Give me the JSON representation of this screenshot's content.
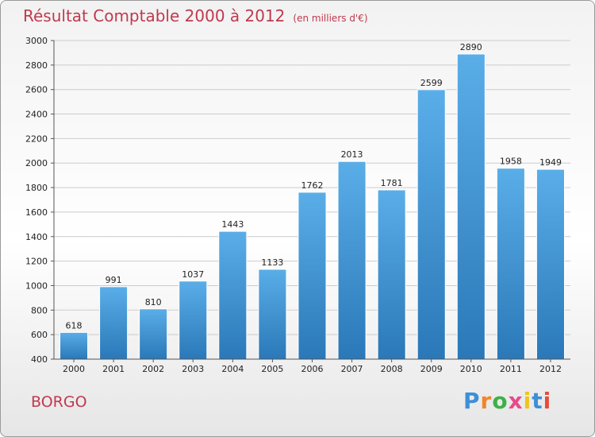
{
  "header": {
    "title": "Résultat Comptable 2000 à 2012",
    "subtitle": "(en milliers d'€)"
  },
  "footer": {
    "place": "BORGO",
    "logo": {
      "text": "Proxiti",
      "letters": [
        {
          "ch": "P",
          "color": "#3d8fd6"
        },
        {
          "ch": "r",
          "color": "#f0862a"
        },
        {
          "ch": "o",
          "color": "#3db04a"
        },
        {
          "ch": "x",
          "color": "#e84b8a"
        },
        {
          "ch": "i",
          "color": "#f0c419"
        },
        {
          "ch": "t",
          "color": "#3d8fd6"
        },
        {
          "ch": "i",
          "color": "#e84b3c"
        }
      ]
    }
  },
  "colors": {
    "accent": "#c0394e",
    "bar_top": "#5aaee8",
    "bar_bottom": "#2a78b8",
    "grid": "#cccccc"
  },
  "chart_data": {
    "type": "bar",
    "title": "Résultat Comptable 2000 à 2012",
    "subtitle": "(en milliers d'€)",
    "categories": [
      "2000",
      "2001",
      "2002",
      "2003",
      "2004",
      "2005",
      "2006",
      "2007",
      "2008",
      "2009",
      "2010",
      "2011",
      "2012"
    ],
    "values": [
      618,
      991,
      810,
      1037,
      1443,
      1133,
      1762,
      2013,
      1781,
      2599,
      2890,
      1958,
      1949
    ],
    "ylim": [
      400,
      3000
    ],
    "yticks": [
      400,
      600,
      800,
      1000,
      1200,
      1400,
      1600,
      1800,
      2000,
      2200,
      2400,
      2600,
      2800,
      3000
    ],
    "grid": true,
    "legend": "none"
  }
}
